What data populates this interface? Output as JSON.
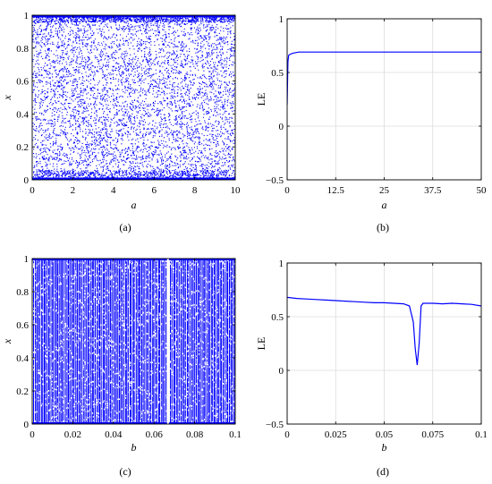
{
  "chart_data": [
    {
      "panel": "a",
      "caption": "(a)",
      "type": "scatter",
      "xlabel": "a",
      "ylabel": "x",
      "xlim": [
        0,
        10
      ],
      "ylim": [
        0,
        1
      ],
      "xticks": [
        "0",
        "2",
        "4",
        "6",
        "8",
        "10"
      ],
      "yticks": [
        "0",
        "0.2",
        "0.4",
        "0.6",
        "0.8",
        "1"
      ],
      "grid": false,
      "color": "#0000ff",
      "pattern": "dense chaotic scatter over x in [0,1] for all a in [0,10], denser near x=0 and x=1"
    },
    {
      "panel": "b",
      "caption": "(b)",
      "type": "line",
      "xlabel": "a",
      "ylabel": "LE",
      "xlim": [
        0,
        50
      ],
      "ylim": [
        -0.5,
        1
      ],
      "xticks": [
        "0",
        "12.5",
        "25",
        "37.5",
        "50"
      ],
      "yticks": [
        "−0.5",
        "0",
        "0.5",
        "1"
      ],
      "grid": true,
      "color": "#0000ff",
      "x": [
        0,
        0.2,
        0.4,
        0.8,
        1.5,
        3,
        5,
        10,
        20,
        30,
        40,
        50
      ],
      "y": [
        0.2,
        0.6,
        0.66,
        0.67,
        0.68,
        0.69,
        0.69,
        0.69,
        0.69,
        0.69,
        0.69,
        0.69
      ]
    },
    {
      "panel": "c",
      "caption": "(c)",
      "type": "scatter",
      "xlabel": "b",
      "ylabel": "x",
      "xlim": [
        0,
        0.1
      ],
      "ylim": [
        0,
        1
      ],
      "xticks": [
        "0",
        "0.02",
        "0.04",
        "0.06",
        "0.08",
        "0.1"
      ],
      "yticks": [
        "0",
        "0.2",
        "0.4",
        "0.6",
        "0.8",
        "1"
      ],
      "grid": false,
      "color": "#0000ff",
      "pattern": "vertical striped bands spanning x in [0,1], gap near b=0.067"
    },
    {
      "panel": "d",
      "caption": "(d)",
      "type": "line",
      "xlabel": "b",
      "ylabel": "LE",
      "xlim": [
        0,
        0.1
      ],
      "ylim": [
        -0.5,
        1
      ],
      "xticks": [
        "0",
        "0.025",
        "0.05",
        "0.075",
        "0.1"
      ],
      "yticks": [
        "−0.5",
        "0",
        "0.5",
        "1"
      ],
      "grid": true,
      "color": "#0000ff",
      "x": [
        0,
        0.005,
        0.01,
        0.015,
        0.02,
        0.025,
        0.03,
        0.035,
        0.04,
        0.045,
        0.05,
        0.055,
        0.06,
        0.063,
        0.065,
        0.066,
        0.067,
        0.068,
        0.069,
        0.07,
        0.075,
        0.08,
        0.085,
        0.09,
        0.095,
        0.1
      ],
      "y": [
        0.68,
        0.67,
        0.665,
        0.66,
        0.655,
        0.65,
        0.645,
        0.64,
        0.635,
        0.63,
        0.63,
        0.625,
        0.62,
        0.6,
        0.45,
        0.2,
        0.05,
        0.25,
        0.6,
        0.625,
        0.625,
        0.62,
        0.625,
        0.62,
        0.615,
        0.6
      ]
    }
  ]
}
